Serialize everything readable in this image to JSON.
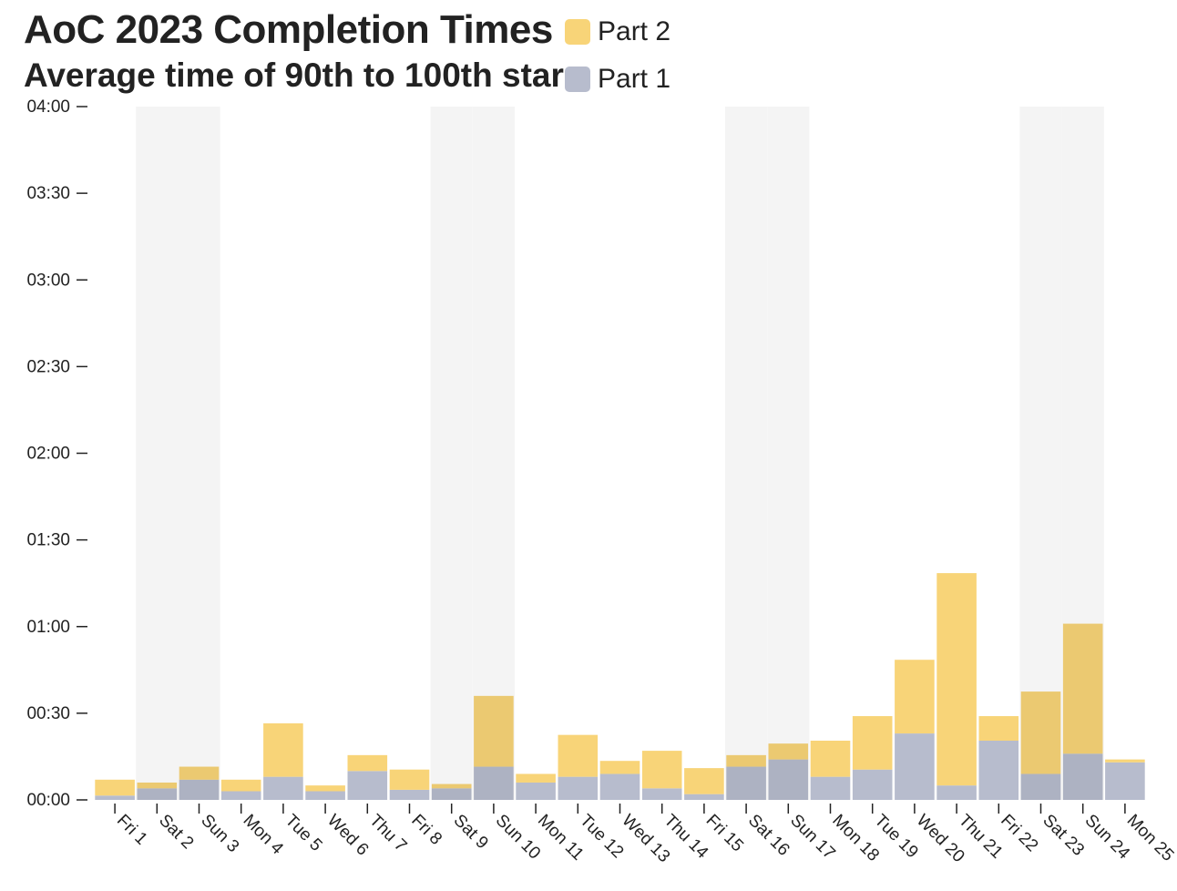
{
  "chart_data": {
    "type": "bar",
    "stacked": true,
    "title": "AoC 2023 Completion Times",
    "subtitle": "Average time of 90th to 100th star",
    "xlabel": "",
    "ylabel": "",
    "categories": [
      "Fri 1",
      "Sat 2",
      "Sun 3",
      "Mon 4",
      "Tue 5",
      "Wed 6",
      "Thu 7",
      "Fri 8",
      "Sat 9",
      "Sun 10",
      "Mon 11",
      "Tue 12",
      "Wed 13",
      "Thu 14",
      "Fri 15",
      "Sat 16",
      "Sun 17",
      "Mon 18",
      "Tue 19",
      "Wed 20",
      "Thu 21",
      "Fri 22",
      "Sat 23",
      "Sun 24",
      "Mon 25"
    ],
    "weekend_shaded": [
      "Sat 2",
      "Sun 3",
      "Sat 9",
      "Sun 10",
      "Sat 16",
      "Sun 17",
      "Sat 23",
      "Sun 24"
    ],
    "series": [
      {
        "name": "Part 1",
        "unit": "minutes",
        "values": [
          1.5,
          4,
          7,
          3,
          8,
          3,
          10,
          3.5,
          4,
          11.5,
          6,
          8,
          9,
          4,
          2,
          11.5,
          14,
          8,
          10.5,
          23,
          5,
          20.5,
          9,
          16,
          13
        ],
        "color": "#b7bccd"
      },
      {
        "name": "Part 2",
        "unit": "minutes",
        "values": [
          5.5,
          2,
          4.5,
          4,
          18.5,
          2,
          5.5,
          7,
          1.5,
          24.5,
          3,
          14.5,
          4.5,
          13,
          9,
          4,
          5.5,
          12.5,
          18.5,
          25.5,
          73.5,
          8.5,
          28.5,
          45,
          1
        ],
        "color": "#f8d478"
      }
    ],
    "y_tick_labels": [
      "00:00",
      "00:30",
      "01:00",
      "01:30",
      "02:00",
      "02:30",
      "03:00",
      "03:30",
      "04:00"
    ],
    "ylim_minutes": [
      0,
      240
    ],
    "grid": false,
    "legend_position": "top"
  },
  "colors": {
    "part1": "#b7bccd",
    "part2": "#f8d478",
    "weekend_band": "#f4f4f4",
    "axis": "#222222"
  }
}
